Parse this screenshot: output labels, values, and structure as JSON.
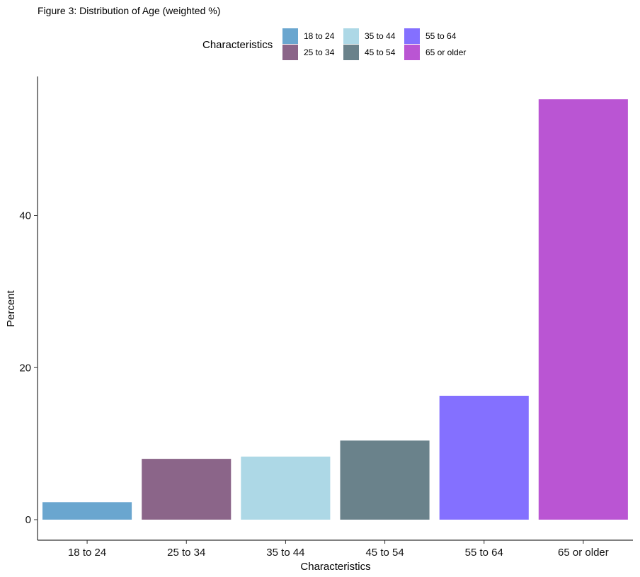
{
  "chart_data": {
    "type": "bar",
    "title": "Figure 3: Distribution of Age (weighted %)",
    "xlabel": "Characteristics",
    "ylabel": "Percent",
    "legend_title": "Characteristics",
    "legend_position": "top",
    "categories": [
      "18 to 24",
      "25 to 34",
      "35 to 44",
      "45 to 54",
      "55 to 64",
      "65 or older"
    ],
    "values": [
      2.3,
      8.0,
      8.3,
      10.4,
      16.3,
      55.3
    ],
    "colors": [
      "#6aa6cf",
      "#8b6589",
      "#add8e6",
      "#6a828b",
      "#8470ff",
      "#ba55d3"
    ],
    "yticks": [
      0,
      20,
      40
    ],
    "ylim": [
      -2.7,
      58.3
    ],
    "grid": false
  }
}
